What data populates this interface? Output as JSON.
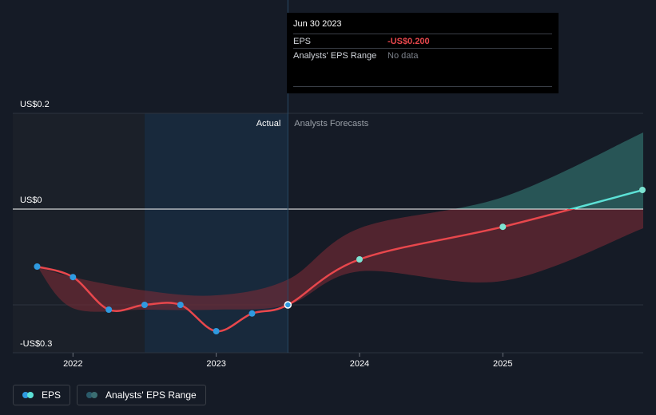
{
  "tooltip": {
    "date": "Jun 30 2023",
    "eps_label": "EPS",
    "eps_value": "-US$0.200",
    "range_label": "Analysts' EPS Range",
    "range_value": "No data"
  },
  "section_labels": {
    "actual": "Actual",
    "forecast": "Analysts Forecasts"
  },
  "legend": {
    "eps": "EPS",
    "range": "Analysts' EPS Range"
  },
  "colors": {
    "background": "#151b26",
    "eps_actual": "#e8474c",
    "eps_positive": "#5ce1d6",
    "point": "#2f9ae0",
    "forecast_point": "#7de3d2",
    "range_negative": "#7a2c35",
    "range_positive": "#2f6a67",
    "actual_highlight": "#1a2f44"
  },
  "chart_data": {
    "type": "line",
    "y_tick_labels": [
      "US$0.2",
      "US$0",
      "-US$0.3"
    ],
    "y_ticks": [
      0.2,
      0,
      -0.3
    ],
    "ylim": [
      -0.3,
      0.2
    ],
    "x_tick_labels": [
      "2022",
      "2023",
      "2024",
      "2025"
    ],
    "x_ticks": [
      2022,
      2023,
      2024,
      2025
    ],
    "xlim": [
      2021.58,
      2025.98
    ],
    "actual_end": 2023.5,
    "shaded_start": 2022.5,
    "series": [
      {
        "name": "EPS",
        "x": [
          2021.75,
          2022.0,
          2022.25,
          2022.5,
          2022.75,
          2023.0,
          2023.25,
          2023.5,
          2024.0,
          2025.0,
          2025.98
        ],
        "y": [
          -0.12,
          -0.142,
          -0.21,
          -0.2,
          -0.2,
          -0.255,
          -0.218,
          -0.2,
          -0.105,
          -0.037,
          0.04
        ],
        "forecast_from_index": 7
      },
      {
        "name": "Analysts' EPS Range",
        "x": [
          2021.75,
          2022.0,
          2022.5,
          2023.0,
          2023.5,
          2024.0,
          2025.0,
          2025.98
        ],
        "high": [
          -0.12,
          -0.142,
          -0.17,
          -0.18,
          -0.147,
          -0.04,
          0.025,
          0.16
        ],
        "low": [
          -0.12,
          -0.207,
          -0.21,
          -0.21,
          -0.2,
          -0.13,
          -0.15,
          -0.04
        ]
      }
    ]
  }
}
